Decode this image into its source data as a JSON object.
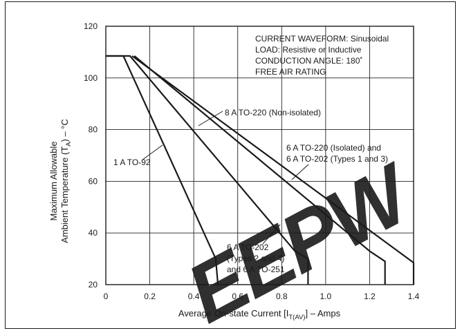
{
  "chart_data": {
    "type": "line",
    "xlabel_main": "Average On-state Current [I",
    "xlabel_sub": "T(AV)",
    "xlabel_tail": "] – Amps",
    "ylabel_line1": "Maximum Allowable",
    "ylabel_line2_main": "Ambient Temperature (T",
    "ylabel_line2_sub": "A",
    "ylabel_line2_tail": ") – °C",
    "xlim": [
      0,
      1.4
    ],
    "ylim": [
      20,
      120
    ],
    "x_ticks": [
      "0",
      "0.2",
      "0.4",
      "0.6",
      "0.8",
      "1.0",
      "1.2",
      "1.4"
    ],
    "y_ticks": [
      "20",
      "40",
      "60",
      "80",
      "100",
      "120"
    ],
    "grid": true,
    "notes": [
      "CURRENT WAVEFORM: Sinusoidal",
      "LOAD: Resistive or Inductive",
      "CONDUCTION ANGLE: 180˚",
      "FREE AIR RATING"
    ],
    "series": [
      {
        "name": "1 A TO-92",
        "points": [
          [
            0,
            108.5
          ],
          [
            0.08,
            108.5
          ],
          [
            0.5,
            30
          ],
          [
            0.51,
            20
          ]
        ]
      },
      {
        "name": "6 A TO-202 (Types 2 and 4) and 6 A TO-251",
        "points": [
          [
            0,
            108.5
          ],
          [
            0.11,
            108.5
          ],
          [
            0.86,
            33
          ],
          [
            0.92,
            30
          ],
          [
            0.92,
            20
          ]
        ]
      },
      {
        "name": "6 A TO-220 (Isolated) and 6 A TO-202 (Types 1 and 3)",
        "points": [
          [
            0.13,
            108.5
          ],
          [
            1.2,
            33
          ],
          [
            1.27,
            29
          ],
          [
            1.27,
            20
          ]
        ]
      },
      {
        "name": "8 A TO-220 (Non-isolated)",
        "points": [
          [
            0.12,
            108.5
          ],
          [
            1.4,
            28.5
          ],
          [
            1.4,
            20
          ]
        ]
      }
    ],
    "labels": [
      {
        "lines": [
          "8 A TO-220 (Non-isolated)"
        ]
      },
      {
        "lines": [
          "6 A TO-220 (Isolated) and",
          "6 A TO-202 (Types 1 and 3)"
        ]
      },
      {
        "lines": [
          "1 A TO-92"
        ]
      },
      {
        "lines": [
          "6 A TO-202",
          "(Types 2 and 4)",
          "and 6 A TO-251"
        ]
      }
    ],
    "watermark": "EEPW",
    "colors": {
      "line": "#1a1a1a",
      "grid": "#222222",
      "watermark": "#e8202a"
    }
  }
}
